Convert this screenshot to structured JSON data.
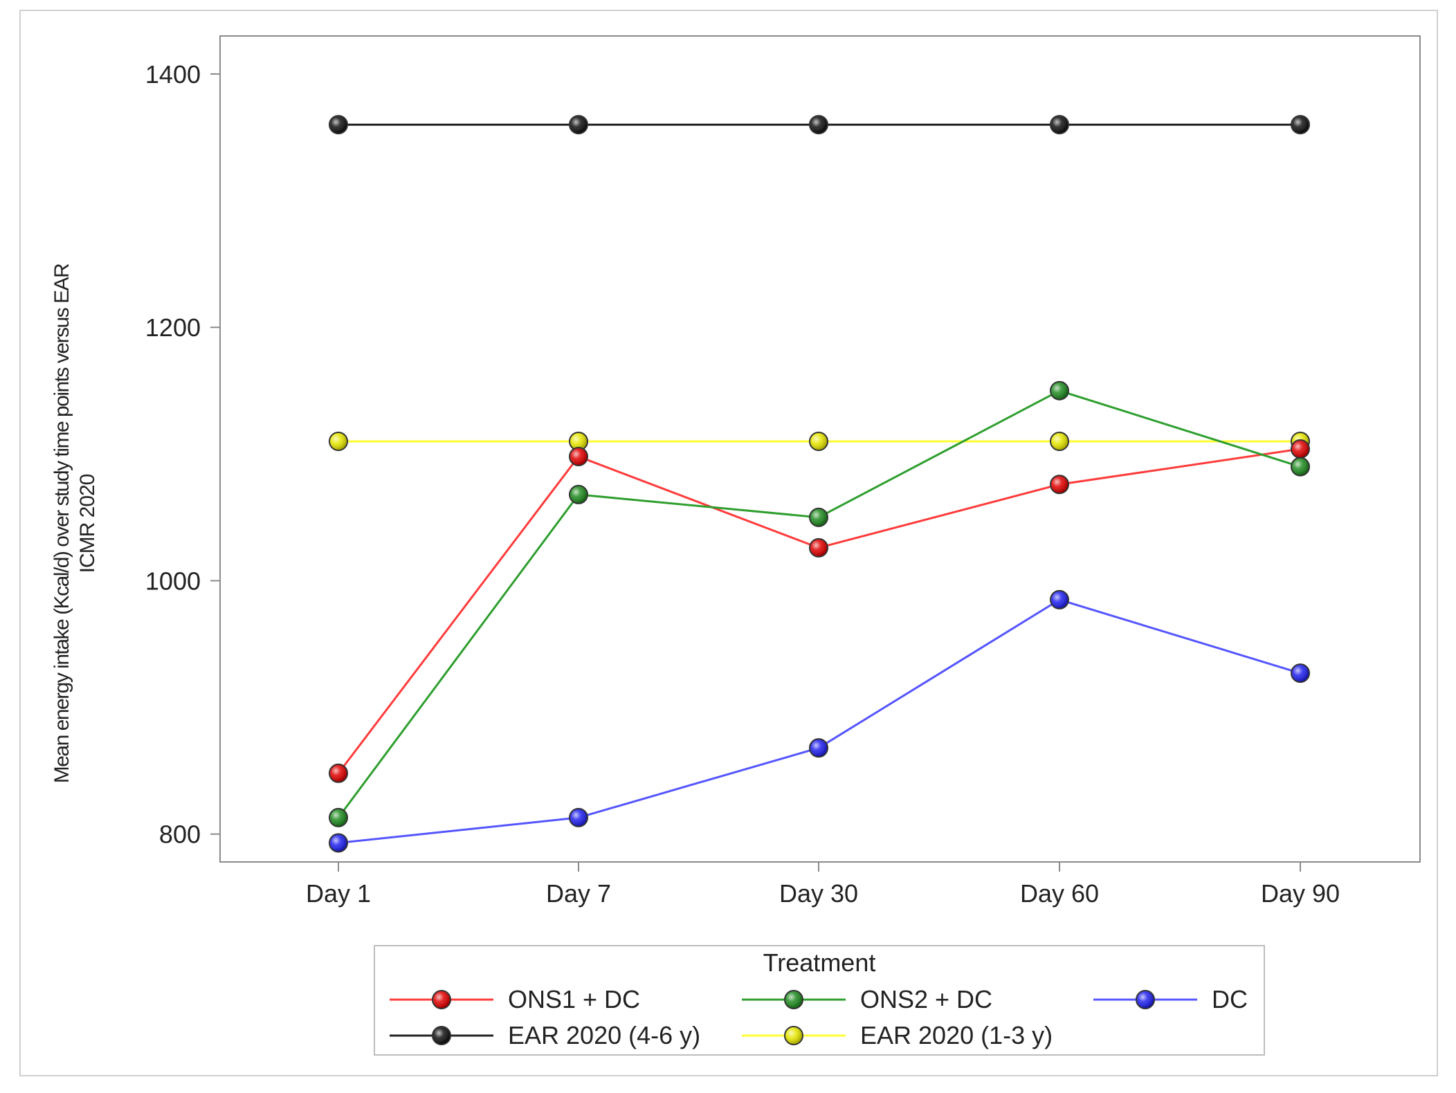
{
  "chart_data": {
    "type": "line",
    "title": "",
    "xlabel": "",
    "ylabel_lines": [
      "Mean energy intake (Kcal/d) over study time points versus EAR",
      "ICMR 2020"
    ],
    "categories": [
      "Day 1",
      "Day 7",
      "Day 30",
      "Day 60",
      "Day 90"
    ],
    "ylim": [
      778,
      1430
    ],
    "yticks": [
      800,
      1000,
      1200,
      1400
    ],
    "ytick_labels": [
      "800",
      "1000",
      "1200",
      "1400"
    ],
    "legend_title": "Treatment",
    "series": [
      {
        "name": "ONS1 + DC",
        "color": "#ff3b3b",
        "marker": "#e00000",
        "values": [
          848,
          1098,
          1026,
          1076,
          1104
        ]
      },
      {
        "name": "ONS2 + DC",
        "color": "#2e9e2e",
        "marker": "#1f8a1f",
        "values": [
          813,
          1068,
          1050,
          1150,
          1090
        ]
      },
      {
        "name": "DC",
        "color": "#5555ff",
        "marker": "#2020ee",
        "values": [
          793,
          813,
          868,
          985,
          927
        ]
      },
      {
        "name": "EAR 2020 (4-6 y)",
        "color": "#222222",
        "marker": "#111111",
        "values": [
          1360,
          1360,
          1360,
          1360,
          1360
        ]
      },
      {
        "name": "EAR 2020 (1-3 y)",
        "color": "#ffff33",
        "marker": "#e6e600",
        "values": [
          1110,
          1110,
          1110,
          1110,
          1110
        ]
      }
    ]
  }
}
